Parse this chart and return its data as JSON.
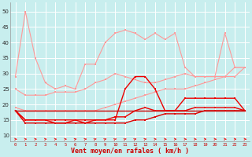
{
  "background_color": "#c8eeee",
  "grid_color": "#aadddd",
  "xlabel": "Vent moyen/en rafales ( km/h )",
  "ylim": [
    8,
    53
  ],
  "y_ticks": [
    10,
    15,
    20,
    25,
    30,
    35,
    40,
    45,
    50
  ],
  "series": [
    {
      "color": "#ff9999",
      "lw": 0.8,
      "marker": "s",
      "ms": 1.8,
      "y": [
        29,
        50,
        35,
        27,
        25,
        26,
        25,
        33,
        33,
        40,
        43,
        44,
        43,
        41,
        43,
        41,
        43,
        32,
        29,
        29,
        29,
        43,
        32,
        32
      ]
    },
    {
      "color": "#ff9999",
      "lw": 0.8,
      "marker": "s",
      "ms": 1.8,
      "y": [
        25,
        23,
        23,
        23,
        24,
        24,
        24,
        25,
        27,
        28,
        30,
        29,
        28,
        27,
        27,
        28,
        29,
        30,
        29,
        29,
        29,
        29,
        32,
        32
      ]
    },
    {
      "color": "#ff9999",
      "lw": 0.8,
      "marker": "s",
      "ms": 1.8,
      "y": [
        19,
        18,
        18,
        18,
        18,
        18,
        18,
        18,
        18,
        19,
        20,
        21,
        22,
        23,
        24,
        25,
        25,
        25,
        26,
        27,
        28,
        29,
        29,
        32
      ]
    },
    {
      "color": "#ee0000",
      "lw": 1.0,
      "marker": "s",
      "ms": 2.0,
      "y": [
        18,
        15,
        15,
        15,
        15,
        15,
        15,
        15,
        15,
        15,
        15,
        25,
        29,
        29,
        25,
        18,
        18,
        22,
        22,
        22,
        22,
        22,
        22,
        18
      ]
    },
    {
      "color": "#ee0000",
      "lw": 1.0,
      "marker": "s",
      "ms": 2.0,
      "y": [
        18,
        15,
        15,
        15,
        14,
        14,
        15,
        14,
        15,
        15,
        16,
        16,
        18,
        19,
        18,
        18,
        18,
        18,
        19,
        19,
        19,
        19,
        19,
        18
      ]
    },
    {
      "color": "#dd0000",
      "lw": 1.0,
      "marker": "s",
      "ms": 2.0,
      "y": [
        18,
        14,
        14,
        14,
        14,
        14,
        14,
        14,
        14,
        14,
        14,
        14,
        15,
        15,
        16,
        17,
        17,
        17,
        17,
        18,
        18,
        18,
        18,
        18
      ]
    },
    {
      "color": "#cc0000",
      "lw": 1.0,
      "marker": null,
      "ms": 0,
      "y": [
        18,
        18,
        18,
        18,
        18,
        18,
        18,
        18,
        18,
        18,
        18,
        18,
        18,
        18,
        18,
        18,
        18,
        18,
        18,
        18,
        18,
        18,
        18,
        18
      ]
    }
  ],
  "arrows": {
    "y": 8.8,
    "color": "#ee2222",
    "angles": [
      0,
      15,
      15,
      15,
      15,
      15,
      30,
      30,
      45,
      45,
      45,
      45,
      45,
      30,
      15,
      0,
      0,
      0,
      0,
      0,
      0,
      0,
      0,
      0
    ]
  }
}
